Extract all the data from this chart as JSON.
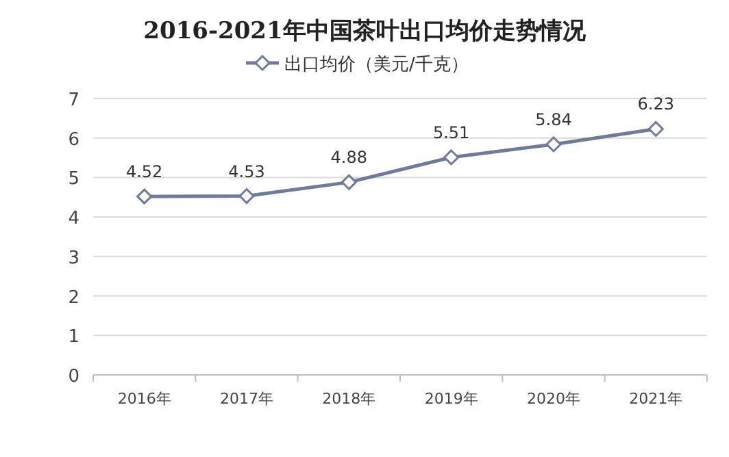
{
  "chart_data": {
    "type": "line",
    "title": "2016-2021年中国茶叶出口均价走势情况",
    "categories": [
      "2016年",
      "2017年",
      "2018年",
      "2019年",
      "2020年",
      "2021年"
    ],
    "series": [
      {
        "name": "出口均价（美元/千克）",
        "color": "#6e7b9b",
        "values": [
          4.52,
          4.53,
          4.88,
          5.51,
          5.84,
          6.23
        ]
      }
    ],
    "ylim": [
      0,
      7
    ],
    "yticks": [
      0,
      1,
      2,
      3,
      4,
      5,
      6,
      7
    ],
    "grid": "y",
    "legend": "top",
    "marker": "diamond",
    "line_style": "solid",
    "data_labels": true
  }
}
